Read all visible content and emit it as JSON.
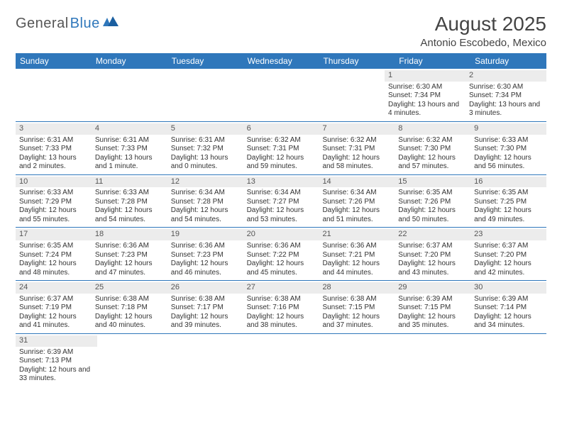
{
  "brand": {
    "part1": "General",
    "part2": "Blue"
  },
  "title": "August 2025",
  "location": "Antonio Escobedo, Mexico",
  "colors": {
    "header_bg": "#2f77bb",
    "daynum_bg": "#ececec",
    "text": "#333333"
  },
  "dayNames": [
    "Sunday",
    "Monday",
    "Tuesday",
    "Wednesday",
    "Thursday",
    "Friday",
    "Saturday"
  ],
  "weeks": [
    [
      null,
      null,
      null,
      null,
      null,
      {
        "n": "1",
        "rise": "Sunrise: 6:30 AM",
        "set": "Sunset: 7:34 PM",
        "dl": "Daylight: 13 hours and 4 minutes."
      },
      {
        "n": "2",
        "rise": "Sunrise: 6:30 AM",
        "set": "Sunset: 7:34 PM",
        "dl": "Daylight: 13 hours and 3 minutes."
      }
    ],
    [
      {
        "n": "3",
        "rise": "Sunrise: 6:31 AM",
        "set": "Sunset: 7:33 PM",
        "dl": "Daylight: 13 hours and 2 minutes."
      },
      {
        "n": "4",
        "rise": "Sunrise: 6:31 AM",
        "set": "Sunset: 7:33 PM",
        "dl": "Daylight: 13 hours and 1 minute."
      },
      {
        "n": "5",
        "rise": "Sunrise: 6:31 AM",
        "set": "Sunset: 7:32 PM",
        "dl": "Daylight: 13 hours and 0 minutes."
      },
      {
        "n": "6",
        "rise": "Sunrise: 6:32 AM",
        "set": "Sunset: 7:31 PM",
        "dl": "Daylight: 12 hours and 59 minutes."
      },
      {
        "n": "7",
        "rise": "Sunrise: 6:32 AM",
        "set": "Sunset: 7:31 PM",
        "dl": "Daylight: 12 hours and 58 minutes."
      },
      {
        "n": "8",
        "rise": "Sunrise: 6:32 AM",
        "set": "Sunset: 7:30 PM",
        "dl": "Daylight: 12 hours and 57 minutes."
      },
      {
        "n": "9",
        "rise": "Sunrise: 6:33 AM",
        "set": "Sunset: 7:30 PM",
        "dl": "Daylight: 12 hours and 56 minutes."
      }
    ],
    [
      {
        "n": "10",
        "rise": "Sunrise: 6:33 AM",
        "set": "Sunset: 7:29 PM",
        "dl": "Daylight: 12 hours and 55 minutes."
      },
      {
        "n": "11",
        "rise": "Sunrise: 6:33 AM",
        "set": "Sunset: 7:28 PM",
        "dl": "Daylight: 12 hours and 54 minutes."
      },
      {
        "n": "12",
        "rise": "Sunrise: 6:34 AM",
        "set": "Sunset: 7:28 PM",
        "dl": "Daylight: 12 hours and 54 minutes."
      },
      {
        "n": "13",
        "rise": "Sunrise: 6:34 AM",
        "set": "Sunset: 7:27 PM",
        "dl": "Daylight: 12 hours and 53 minutes."
      },
      {
        "n": "14",
        "rise": "Sunrise: 6:34 AM",
        "set": "Sunset: 7:26 PM",
        "dl": "Daylight: 12 hours and 51 minutes."
      },
      {
        "n": "15",
        "rise": "Sunrise: 6:35 AM",
        "set": "Sunset: 7:26 PM",
        "dl": "Daylight: 12 hours and 50 minutes."
      },
      {
        "n": "16",
        "rise": "Sunrise: 6:35 AM",
        "set": "Sunset: 7:25 PM",
        "dl": "Daylight: 12 hours and 49 minutes."
      }
    ],
    [
      {
        "n": "17",
        "rise": "Sunrise: 6:35 AM",
        "set": "Sunset: 7:24 PM",
        "dl": "Daylight: 12 hours and 48 minutes."
      },
      {
        "n": "18",
        "rise": "Sunrise: 6:36 AM",
        "set": "Sunset: 7:23 PM",
        "dl": "Daylight: 12 hours and 47 minutes."
      },
      {
        "n": "19",
        "rise": "Sunrise: 6:36 AM",
        "set": "Sunset: 7:23 PM",
        "dl": "Daylight: 12 hours and 46 minutes."
      },
      {
        "n": "20",
        "rise": "Sunrise: 6:36 AM",
        "set": "Sunset: 7:22 PM",
        "dl": "Daylight: 12 hours and 45 minutes."
      },
      {
        "n": "21",
        "rise": "Sunrise: 6:36 AM",
        "set": "Sunset: 7:21 PM",
        "dl": "Daylight: 12 hours and 44 minutes."
      },
      {
        "n": "22",
        "rise": "Sunrise: 6:37 AM",
        "set": "Sunset: 7:20 PM",
        "dl": "Daylight: 12 hours and 43 minutes."
      },
      {
        "n": "23",
        "rise": "Sunrise: 6:37 AM",
        "set": "Sunset: 7:20 PM",
        "dl": "Daylight: 12 hours and 42 minutes."
      }
    ],
    [
      {
        "n": "24",
        "rise": "Sunrise: 6:37 AM",
        "set": "Sunset: 7:19 PM",
        "dl": "Daylight: 12 hours and 41 minutes."
      },
      {
        "n": "25",
        "rise": "Sunrise: 6:38 AM",
        "set": "Sunset: 7:18 PM",
        "dl": "Daylight: 12 hours and 40 minutes."
      },
      {
        "n": "26",
        "rise": "Sunrise: 6:38 AM",
        "set": "Sunset: 7:17 PM",
        "dl": "Daylight: 12 hours and 39 minutes."
      },
      {
        "n": "27",
        "rise": "Sunrise: 6:38 AM",
        "set": "Sunset: 7:16 PM",
        "dl": "Daylight: 12 hours and 38 minutes."
      },
      {
        "n": "28",
        "rise": "Sunrise: 6:38 AM",
        "set": "Sunset: 7:15 PM",
        "dl": "Daylight: 12 hours and 37 minutes."
      },
      {
        "n": "29",
        "rise": "Sunrise: 6:39 AM",
        "set": "Sunset: 7:15 PM",
        "dl": "Daylight: 12 hours and 35 minutes."
      },
      {
        "n": "30",
        "rise": "Sunrise: 6:39 AM",
        "set": "Sunset: 7:14 PM",
        "dl": "Daylight: 12 hours and 34 minutes."
      }
    ],
    [
      {
        "n": "31",
        "rise": "Sunrise: 6:39 AM",
        "set": "Sunset: 7:13 PM",
        "dl": "Daylight: 12 hours and 33 minutes."
      },
      null,
      null,
      null,
      null,
      null,
      null
    ]
  ]
}
